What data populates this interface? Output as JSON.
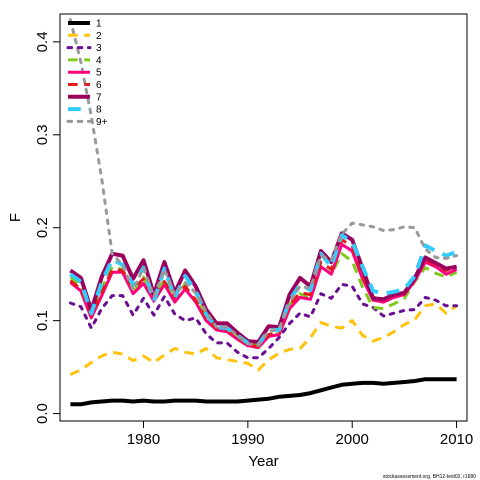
{
  "chart_data": {
    "type": "line",
    "xlabel": "Year",
    "ylabel": "F",
    "xlim": [
      1972,
      2011
    ],
    "ylim": [
      -0.008,
      0.43
    ],
    "x_ticks": [
      1980,
      1990,
      2000,
      2010
    ],
    "y_ticks": [
      0.0,
      0.1,
      0.2,
      0.3,
      0.4
    ],
    "x_tick_labels": [
      "1980",
      "1990",
      "2000",
      "2010"
    ],
    "y_tick_labels": [
      "0.0",
      "0.1",
      "0.2",
      "0.3",
      "0.4"
    ],
    "grid": false,
    "legend_position": "top-left",
    "credit": "stockassessment.org, BH12-test02, r1680",
    "x": [
      1973,
      1974,
      1975,
      1976,
      1977,
      1978,
      1979,
      1980,
      1981,
      1982,
      1983,
      1984,
      1985,
      1986,
      1987,
      1988,
      1989,
      1990,
      1991,
      1992,
      1993,
      1994,
      1995,
      1996,
      1997,
      1998,
      1999,
      2000,
      2001,
      2002,
      2003,
      2004,
      2005,
      2006,
      2007,
      2008,
      2009,
      2010
    ],
    "series": [
      {
        "name": "1",
        "color": "#000000",
        "dash": "solid",
        "width": 4,
        "values": [
          0.01,
          0.01,
          0.012,
          0.013,
          0.014,
          0.014,
          0.013,
          0.014,
          0.013,
          0.013,
          0.014,
          0.014,
          0.014,
          0.013,
          0.013,
          0.013,
          0.013,
          0.014,
          0.015,
          0.016,
          0.018,
          0.019,
          0.02,
          0.022,
          0.025,
          0.028,
          0.031,
          0.032,
          0.033,
          0.033,
          0.032,
          0.033,
          0.034,
          0.035,
          0.037,
          0.037,
          0.037,
          0.037
        ]
      },
      {
        "name": "2",
        "color": "#FFC20E",
        "dash": "dash",
        "width": 3,
        "values": [
          0.042,
          0.047,
          0.055,
          0.062,
          0.066,
          0.064,
          0.057,
          0.062,
          0.055,
          0.063,
          0.07,
          0.066,
          0.064,
          0.07,
          0.06,
          0.058,
          0.056,
          0.054,
          0.047,
          0.058,
          0.065,
          0.069,
          0.07,
          0.082,
          0.098,
          0.094,
          0.092,
          0.1,
          0.084,
          0.078,
          0.082,
          0.088,
          0.096,
          0.101,
          0.116,
          0.118,
          0.108,
          0.116
        ]
      },
      {
        "name": "3",
        "color": "#6A0D91",
        "dash": "dot",
        "width": 3,
        "values": [
          0.119,
          0.115,
          0.092,
          0.113,
          0.127,
          0.127,
          0.106,
          0.124,
          0.106,
          0.126,
          0.107,
          0.1,
          0.103,
          0.086,
          0.076,
          0.076,
          0.066,
          0.06,
          0.06,
          0.07,
          0.082,
          0.097,
          0.108,
          0.104,
          0.129,
          0.124,
          0.139,
          0.137,
          0.118,
          0.114,
          0.105,
          0.108,
          0.111,
          0.112,
          0.125,
          0.122,
          0.116,
          0.116
        ]
      },
      {
        "name": "4",
        "color": "#7FCB1B",
        "dash": "dash",
        "width": 3,
        "values": [
          0.147,
          0.138,
          0.11,
          0.135,
          0.158,
          0.155,
          0.13,
          0.147,
          0.125,
          0.144,
          0.122,
          0.14,
          0.13,
          0.104,
          0.093,
          0.092,
          0.082,
          0.075,
          0.073,
          0.085,
          0.086,
          0.117,
          0.129,
          0.124,
          0.158,
          0.15,
          0.172,
          0.164,
          0.136,
          0.114,
          0.113,
          0.118,
          0.124,
          0.142,
          0.157,
          0.151,
          0.147,
          0.152
        ]
      },
      {
        "name": "5",
        "color": "#FF007F",
        "dash": "solid",
        "width": 3,
        "values": [
          0.141,
          0.132,
          0.103,
          0.127,
          0.152,
          0.152,
          0.129,
          0.14,
          0.121,
          0.139,
          0.12,
          0.134,
          0.12,
          0.1,
          0.09,
          0.088,
          0.08,
          0.073,
          0.071,
          0.083,
          0.085,
          0.113,
          0.125,
          0.123,
          0.158,
          0.15,
          0.182,
          0.175,
          0.145,
          0.122,
          0.12,
          0.125,
          0.128,
          0.143,
          0.163,
          0.158,
          0.15,
          0.155
        ]
      },
      {
        "name": "6",
        "color": "#E41A1C",
        "dash": "dash",
        "width": 3,
        "values": [
          0.143,
          0.134,
          0.106,
          0.13,
          0.155,
          0.154,
          0.134,
          0.145,
          0.124,
          0.142,
          0.125,
          0.137,
          0.122,
          0.102,
          0.092,
          0.09,
          0.082,
          0.074,
          0.072,
          0.085,
          0.088,
          0.117,
          0.13,
          0.128,
          0.163,
          0.155,
          0.187,
          0.18,
          0.148,
          0.125,
          0.123,
          0.128,
          0.13,
          0.146,
          0.166,
          0.16,
          0.154,
          0.158
        ]
      },
      {
        "name": "7",
        "color": "#9A005C",
        "dash": "solid",
        "width": 4,
        "values": [
          0.154,
          0.146,
          0.111,
          0.147,
          0.172,
          0.17,
          0.145,
          0.165,
          0.128,
          0.163,
          0.13,
          0.154,
          0.137,
          0.112,
          0.097,
          0.097,
          0.087,
          0.078,
          0.077,
          0.094,
          0.093,
          0.128,
          0.146,
          0.137,
          0.175,
          0.163,
          0.194,
          0.187,
          0.156,
          0.124,
          0.123,
          0.128,
          0.13,
          0.146,
          0.168,
          0.162,
          0.156,
          0.158
        ]
      },
      {
        "name": "8",
        "color": "#33CCFF",
        "dash": "dash",
        "width": 4,
        "values": [
          0.15,
          0.142,
          0.108,
          0.141,
          0.166,
          0.16,
          0.138,
          0.157,
          0.121,
          0.156,
          0.125,
          0.148,
          0.132,
          0.107,
          0.093,
          0.092,
          0.084,
          0.076,
          0.074,
          0.09,
          0.09,
          0.122,
          0.139,
          0.133,
          0.172,
          0.158,
          0.192,
          0.185,
          0.158,
          0.132,
          0.129,
          0.131,
          0.134,
          0.148,
          0.181,
          0.175,
          0.17,
          0.174
        ]
      },
      {
        "name": "9+",
        "color": "#999999",
        "dash": "dot",
        "width": 3,
        "values": [
          0.424,
          0.378,
          0.32,
          0.253,
          0.172,
          0.16,
          0.133,
          0.157,
          0.126,
          0.155,
          0.128,
          0.141,
          0.13,
          0.11,
          0.093,
          0.093,
          0.084,
          0.075,
          0.074,
          0.089,
          0.091,
          0.12,
          0.137,
          0.135,
          0.17,
          0.165,
          0.193,
          0.205,
          0.203,
          0.201,
          0.197,
          0.198,
          0.201,
          0.2,
          0.177,
          0.168,
          0.167,
          0.17
        ]
      }
    ]
  }
}
